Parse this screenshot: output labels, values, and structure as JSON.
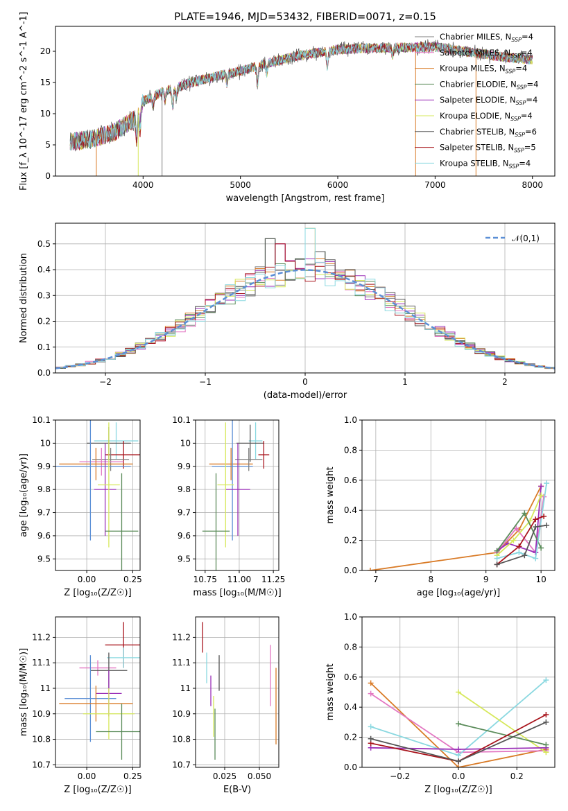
{
  "figure_title": "PLATE=1946, MJD=53432, FIBERID=0071, z=0.15",
  "colors": {
    "chabrier_miles": "#7f7f7f",
    "salpeter_miles": "#e377c2",
    "kroupa_miles": "#d97b27",
    "chabrier_elodie": "#5b8c5a",
    "salpeter_elodie": "#9b30b8",
    "kroupa_elodie": "#d6e85a",
    "chabrier_stelib": "#555555",
    "salpeter_stelib": "#a8141c",
    "kroupa_stelib": "#8ad8e0",
    "normal": "#5b8fd6"
  },
  "legend_entries": [
    "Chabrier MILES, N_SSP=4",
    "Salpeter MILES, N_SSP=4",
    "Kroupa MILES, N_SSP=4",
    "Chabrier ELODIE, N_SSP=4",
    "Salpeter ELODIE, N_SSP=4",
    "Kroupa ELODIE, N_SSP=4",
    "Chabrier STELIB, N_SSP=6",
    "Salpeter STELIB, N_SSP=5",
    "Kroupa STELIB, N_SSP=4"
  ],
  "chart_data": [
    {
      "id": "spectrum",
      "type": "line",
      "title": "PLATE=1946, MJD=53432, FIBERID=0071, z=0.15",
      "xlabel": "wavelength [Angstrom, rest frame]",
      "ylabel": "Flux [f_λ 10^-17 erg cm^-2 s^-1 A^-1]",
      "xlim": [
        3100,
        8230
      ],
      "ylim": [
        0,
        24
      ],
      "xticks": [
        4000,
        5000,
        6000,
        7000,
        8000
      ],
      "yticks": [
        0,
        5,
        10,
        15,
        20
      ],
      "grid": false,
      "legend_position": "upper-right",
      "continuum": {
        "x": [
          3250,
          3500,
          3700,
          3900,
          4000,
          4200,
          4500,
          4800,
          5000,
          5300,
          5600,
          6000,
          6300,
          6600,
          7000,
          7300,
          7600,
          8000
        ],
        "y": [
          5.5,
          6.0,
          7.0,
          9.0,
          12.0,
          13.5,
          15.0,
          16.2,
          16.8,
          18.2,
          19.3,
          20.3,
          20.5,
          20.6,
          20.7,
          20.0,
          19.3,
          18.6
        ]
      },
      "absorption_features": [
        {
          "x": 3933,
          "depth": 4.0
        },
        {
          "x": 3968,
          "depth": 3.5
        },
        {
          "x": 4102,
          "depth": 1.5
        },
        {
          "x": 4226,
          "depth": 1.5
        },
        {
          "x": 4304,
          "depth": 3.0
        },
        {
          "x": 4340,
          "depth": 1.5
        },
        {
          "x": 4861,
          "depth": 1.5
        },
        {
          "x": 5175,
          "depth": 3.0
        },
        {
          "x": 5270,
          "depth": 1.5
        },
        {
          "x": 5893,
          "depth": 2.5
        },
        {
          "x": 6563,
          "depth": 1.2
        }
      ],
      "sharp_drops_to_zero": [
        3520,
        3950,
        4195,
        6800,
        7420
      ]
    },
    {
      "id": "residuals",
      "type": "histogram",
      "xlabel": "(data-model)/error",
      "ylabel": "Normed distribution",
      "xlim": [
        -2.5,
        2.5
      ],
      "ylim": [
        0,
        0.58
      ],
      "xticks": [
        -2,
        -1,
        0,
        1,
        2
      ],
      "yticks": [
        0.0,
        0.1,
        0.2,
        0.3,
        0.4,
        0.5
      ],
      "grid": true,
      "legend_position": "upper-right",
      "legend": "𝒩(0,1)",
      "bin_width": 0.1,
      "highlight_bins": {
        "x": [
          -0.4,
          -0.3,
          0.0,
          0.1
        ],
        "heights": [
          0.52,
          0.5,
          0.56,
          0.47
        ]
      }
    },
    {
      "id": "age_vs_Z",
      "type": "scatter",
      "xlabel": "Z [log10(Z/Z☉)]",
      "ylabel": "age  [log10(age/yr)]",
      "xlim": [
        -0.17,
        0.29
      ],
      "ylim": [
        9.45,
        10.1
      ],
      "xticks": [
        0.0,
        0.25
      ],
      "xtick_labels": [
        "0.00",
        "0.25"
      ],
      "yticks": [
        9.5,
        9.6,
        9.7,
        9.8,
        9.9,
        10.0,
        10.1
      ],
      "grid": true,
      "points": [
        {
          "series": "kroupa_stelib",
          "x": 0.16,
          "xerr": 0.12,
          "y": 10.01,
          "yerr": 0.08
        },
        {
          "series": "chabrier_stelib",
          "x": 0.12,
          "xerr": 0.12,
          "y": 10.0,
          "yerr": 0.07
        },
        {
          "series": "salpeter_stelib",
          "x": 0.2,
          "xerr": 0.1,
          "y": 9.95,
          "yerr": 0.06
        },
        {
          "series": "chabrier_miles",
          "x": 0.13,
          "xerr": 0.1,
          "y": 9.93,
          "yerr": 0.05
        },
        {
          "series": "salpeter_miles",
          "x": 0.08,
          "xerr": 0.12,
          "y": 9.92,
          "yerr": 0.06
        },
        {
          "series": "kroupa_miles",
          "x": 0.05,
          "xerr": 0.2,
          "y": 9.91,
          "yerr": 0.07
        },
        {
          "series": "normal",
          "x": 0.02,
          "xerr": 0.22,
          "y": 9.9,
          "yerr": 0.32
        },
        {
          "series": "salpeter_elodie",
          "x": 0.1,
          "xerr": 0.06,
          "y": 9.8,
          "yerr": 0.2
        },
        {
          "series": "kroupa_elodie",
          "x": 0.12,
          "xerr": 0.06,
          "y": 9.82,
          "yerr": 0.27
        },
        {
          "series": "chabrier_elodie",
          "x": 0.19,
          "xerr": 0.09,
          "y": 9.62,
          "yerr": 0.25
        }
      ]
    },
    {
      "id": "age_vs_mass",
      "type": "scatter",
      "xlabel": "mass [log10(M/M☉)]",
      "xlim": [
        10.68,
        11.29
      ],
      "ylim": [
        9.45,
        10.1
      ],
      "xticks": [
        10.75,
        11.0,
        11.25
      ],
      "xtick_labels": [
        "10.75",
        "11.00",
        "11.25"
      ],
      "yticks": [
        9.5,
        9.6,
        9.7,
        9.8,
        9.9,
        10.0,
        10.1
      ],
      "grid": true,
      "points": [
        {
          "series": "kroupa_stelib",
          "x": 11.12,
          "xerr": 0.05,
          "y": 10.01,
          "yerr": 0.08
        },
        {
          "series": "chabrier_stelib",
          "x": 11.08,
          "xerr": 0.1,
          "y": 10.0,
          "yerr": 0.08
        },
        {
          "series": "salpeter_stelib",
          "x": 11.18,
          "xerr": 0.04,
          "y": 9.95,
          "yerr": 0.06
        },
        {
          "series": "kroupa_miles",
          "x": 10.94,
          "xerr": 0.16,
          "y": 9.91,
          "yerr": 0.07
        },
        {
          "series": "normal",
          "x": 10.95,
          "xerr": 0.15,
          "y": 9.9,
          "yerr": 0.32
        },
        {
          "series": "chabrier_miles",
          "x": 11.07,
          "xerr": 0.1,
          "y": 9.93,
          "yerr": 0.05
        },
        {
          "series": "salpeter_elodie",
          "x": 10.99,
          "xerr": 0.09,
          "y": 9.8,
          "yerr": 0.2
        },
        {
          "series": "kroupa_elodie",
          "x": 10.9,
          "xerr": 0.06,
          "y": 9.82,
          "yerr": 0.27
        },
        {
          "series": "chabrier_elodie",
          "x": 10.83,
          "xerr": 0.1,
          "y": 9.62,
          "yerr": 0.25
        }
      ]
    },
    {
      "id": "weight_vs_age",
      "type": "line",
      "xlabel": "age  [log10(age/yr)]",
      "ylabel": "mass weight",
      "xlim": [
        6.75,
        10.25
      ],
      "ylim": [
        0,
        1.0
      ],
      "xticks": [
        7,
        8,
        9,
        10
      ],
      "yticks": [
        0.0,
        0.2,
        0.4,
        0.6,
        0.8,
        1.0
      ],
      "grid": true,
      "series": [
        {
          "name": "kroupa_miles",
          "x": [
            6.9,
            9.2,
            9.6,
            10.0
          ],
          "y": [
            0.0,
            0.12,
            0.27,
            0.56
          ]
        },
        {
          "name": "salpeter_miles",
          "x": [
            9.2,
            9.55,
            9.9,
            10.05
          ],
          "y": [
            0.12,
            0.28,
            0.12,
            0.49
          ]
        },
        {
          "name": "salpeter_elodie",
          "x": [
            9.2,
            9.4,
            9.9,
            10.0
          ],
          "y": [
            0.13,
            0.18,
            0.12,
            0.56
          ]
        },
        {
          "name": "kroupa_elodie",
          "x": [
            9.2,
            9.5,
            9.8,
            10.0
          ],
          "y": [
            0.1,
            0.2,
            0.33,
            0.5
          ]
        },
        {
          "name": "chabrier_elodie",
          "x": [
            9.2,
            9.7,
            10.0
          ],
          "y": [
            0.13,
            0.38,
            0.15
          ]
        },
        {
          "name": "kroupa_stelib",
          "x": [
            9.2,
            9.6,
            9.9,
            10.1
          ],
          "y": [
            0.08,
            0.12,
            0.08,
            0.58
          ]
        },
        {
          "name": "salpeter_stelib",
          "x": [
            9.2,
            9.6,
            9.9,
            10.05
          ],
          "y": [
            0.04,
            0.16,
            0.34,
            0.36
          ]
        },
        {
          "name": "chabrier_stelib",
          "x": [
            9.2,
            9.7,
            9.9,
            10.1
          ],
          "y": [
            0.04,
            0.1,
            0.29,
            0.3
          ]
        }
      ]
    },
    {
      "id": "mass_vs_Z",
      "type": "scatter",
      "xlabel": "Z [log10(Z/Z☉)]",
      "ylabel": "mass [log10(M/M☉)]",
      "xlim": [
        -0.17,
        0.29
      ],
      "ylim": [
        10.69,
        11.28
      ],
      "xticks": [
        0.0,
        0.25
      ],
      "xtick_labels": [
        "0.00",
        "0.25"
      ],
      "yticks": [
        10.7,
        10.8,
        10.9,
        11.0,
        11.1,
        11.2
      ],
      "grid": true,
      "points": [
        {
          "series": "salpeter_stelib",
          "x": 0.2,
          "xerr": 0.1,
          "y": 11.17,
          "yerr": 0.09
        },
        {
          "series": "kroupa_stelib",
          "x": 0.2,
          "xerr": 0.09,
          "y": 11.12,
          "yerr": 0.04
        },
        {
          "series": "salpeter_miles",
          "x": 0.06,
          "xerr": 0.1,
          "y": 11.08,
          "yerr": 0.03
        },
        {
          "series": "chabrier_stelib",
          "x": 0.12,
          "xerr": 0.1,
          "y": 11.07,
          "yerr": 0.07
        },
        {
          "series": "salpeter_elodie",
          "x": 0.12,
          "xerr": 0.07,
          "y": 10.98,
          "yerr": 0.09
        },
        {
          "series": "normal",
          "x": 0.02,
          "xerr": 0.14,
          "y": 10.96,
          "yerr": 0.17
        },
        {
          "series": "kroupa_miles",
          "x": 0.05,
          "xerr": 0.2,
          "y": 10.94,
          "yerr": 0.07
        },
        {
          "series": "kroupa_elodie",
          "x": 0.12,
          "xerr": 0.14,
          "y": 10.9,
          "yerr": 0.1
        },
        {
          "series": "chabrier_elodie",
          "x": 0.19,
          "xerr": 0.14,
          "y": 10.83,
          "yerr": 0.11
        }
      ]
    },
    {
      "id": "mass_vs_ebv",
      "type": "scatter",
      "xlabel": "E(B-V)",
      "xlim": [
        0.004,
        0.064
      ],
      "ylim": [
        10.69,
        11.28
      ],
      "xticks": [
        0.025,
        0.05
      ],
      "xtick_labels": [
        "0.025",
        "0.050"
      ],
      "yticks": [
        10.7,
        10.8,
        10.9,
        11.0,
        11.1,
        11.2
      ],
      "grid": true,
      "points": [
        {
          "series": "salpeter_stelib",
          "x": 0.009,
          "y": 11.2,
          "yerr": 0.06
        },
        {
          "series": "kroupa_stelib",
          "x": 0.012,
          "y": 11.08,
          "yerr": 0.06
        },
        {
          "series": "salpeter_elodie",
          "x": 0.015,
          "y": 10.99,
          "yerr": 0.06
        },
        {
          "series": "kroupa_elodie",
          "x": 0.017,
          "y": 10.89,
          "yerr": 0.08
        },
        {
          "series": "chabrier_elodie",
          "x": 0.018,
          "y": 10.82,
          "yerr": 0.1
        },
        {
          "series": "chabrier_stelib",
          "x": 0.021,
          "y": 11.06,
          "yerr": 0.07
        },
        {
          "series": "salpeter_miles",
          "x": 0.058,
          "y": 11.05,
          "yerr": 0.12
        },
        {
          "series": "kroupa_miles",
          "x": 0.062,
          "y": 10.93,
          "yerr": 0.15
        }
      ]
    },
    {
      "id": "weight_vs_Z",
      "type": "line",
      "xlabel": "Z [log10(Z/Z☉)]",
      "ylabel": "mass weight",
      "xlim": [
        -0.33,
        0.33
      ],
      "ylim": [
        0,
        1.0
      ],
      "xticks": [
        -0.2,
        0.0,
        0.2
      ],
      "xtick_labels": [
        "−0.2",
        "0.0",
        "0.2"
      ],
      "yticks": [
        0.0,
        0.2,
        0.4,
        0.6,
        0.8,
        1.0
      ],
      "grid": true,
      "series": [
        {
          "name": "kroupa_miles",
          "x": [
            -0.3,
            0.0,
            0.3
          ],
          "y": [
            0.56,
            0.0,
            0.12
          ]
        },
        {
          "name": "salpeter_miles",
          "x": [
            -0.3,
            0.0,
            0.3
          ],
          "y": [
            0.49,
            0.1,
            0.11
          ]
        },
        {
          "name": "kroupa_stelib",
          "x": [
            -0.3,
            0.0,
            0.3
          ],
          "y": [
            0.27,
            0.08,
            0.58
          ]
        },
        {
          "name": "kroupa_elodie",
          "x": [
            0.0,
            0.3
          ],
          "y": [
            0.5,
            0.1
          ]
        },
        {
          "name": "salpeter_elodie",
          "x": [
            -0.3,
            0.0,
            0.3
          ],
          "y": [
            0.13,
            0.12,
            0.13
          ]
        },
        {
          "name": "chabrier_elodie",
          "x": [
            0.0,
            0.3
          ],
          "y": [
            0.29,
            0.15
          ]
        },
        {
          "name": "salpeter_stelib",
          "x": [
            -0.3,
            0.0,
            0.3
          ],
          "y": [
            0.16,
            0.04,
            0.35
          ]
        },
        {
          "name": "chabrier_stelib",
          "x": [
            -0.3,
            0.0,
            0.3
          ],
          "y": [
            0.19,
            0.04,
            0.3
          ]
        }
      ]
    }
  ]
}
